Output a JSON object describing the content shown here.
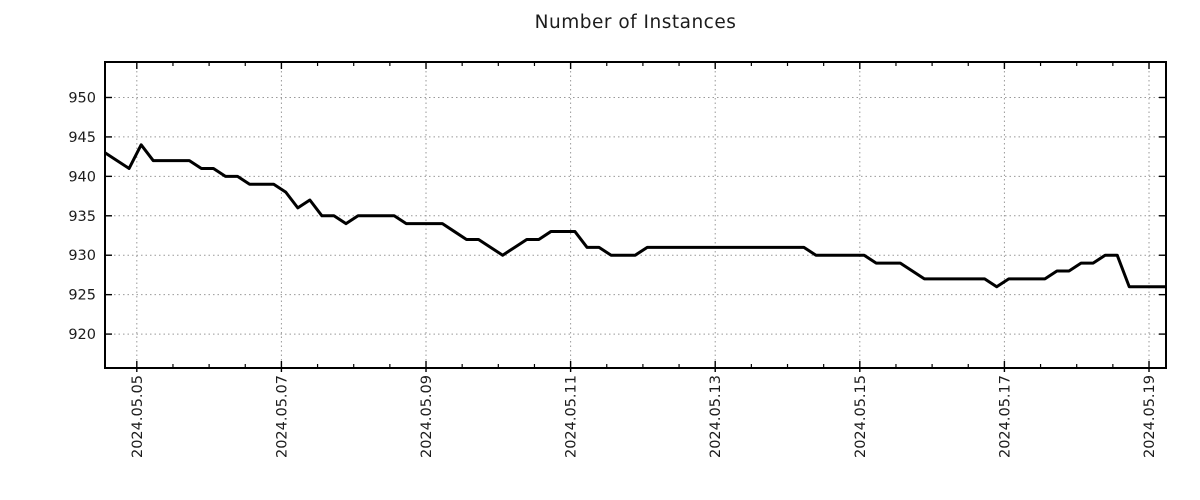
{
  "chart_data": {
    "type": "line",
    "title": "Number of Instances",
    "xlabel": "",
    "ylabel": "",
    "grid": "dotted",
    "legend": "none",
    "x_axis": {
      "unit": "date (day of May 2024)",
      "xlim_days": [
        4.56,
        19.235
      ],
      "major_tick_days": [
        5,
        7,
        9,
        11,
        13,
        15,
        17,
        19
      ],
      "major_tick_labels": [
        "2024.05.05",
        "2024.05.07",
        "2024.05.09",
        "2024.05.11",
        "2024.05.13",
        "2024.05.15",
        "2024.05.17",
        "2024.05.19"
      ],
      "minor_tick_step_days": 0.5
    },
    "y_axis": {
      "ylim": [
        915.7,
        954.5
      ],
      "ticks": [
        920,
        925,
        930,
        935,
        940,
        945,
        950
      ],
      "tick_labels": [
        "920",
        "925",
        "930",
        "935",
        "940",
        "945",
        "950"
      ]
    },
    "series": [
      {
        "name": "instances",
        "start_day": 4.56,
        "step_days": 0.1666667,
        "values": [
          943,
          942,
          941,
          944,
          942,
          942,
          942,
          942,
          941,
          941,
          940,
          940,
          939,
          939,
          939,
          938,
          936,
          937,
          935,
          935,
          934,
          935,
          935,
          935,
          935,
          934,
          934,
          934,
          934,
          933,
          932,
          932,
          931,
          930,
          931,
          932,
          932,
          933,
          933,
          933,
          931,
          931,
          930,
          930,
          930,
          931,
          931,
          931,
          931,
          931,
          931,
          931,
          931,
          931,
          931,
          931,
          931,
          931,
          931,
          930,
          930,
          930,
          930,
          930,
          929,
          929,
          929,
          928,
          927,
          927,
          927,
          927,
          927,
          927,
          926,
          927,
          927,
          927,
          927,
          928,
          928,
          929,
          929,
          930,
          930,
          926,
          926,
          926,
          926
        ]
      }
    ],
    "colors": {
      "line": "#000000",
      "grid": "#999999",
      "border": "#000000",
      "text": "#1c1c1c"
    }
  }
}
